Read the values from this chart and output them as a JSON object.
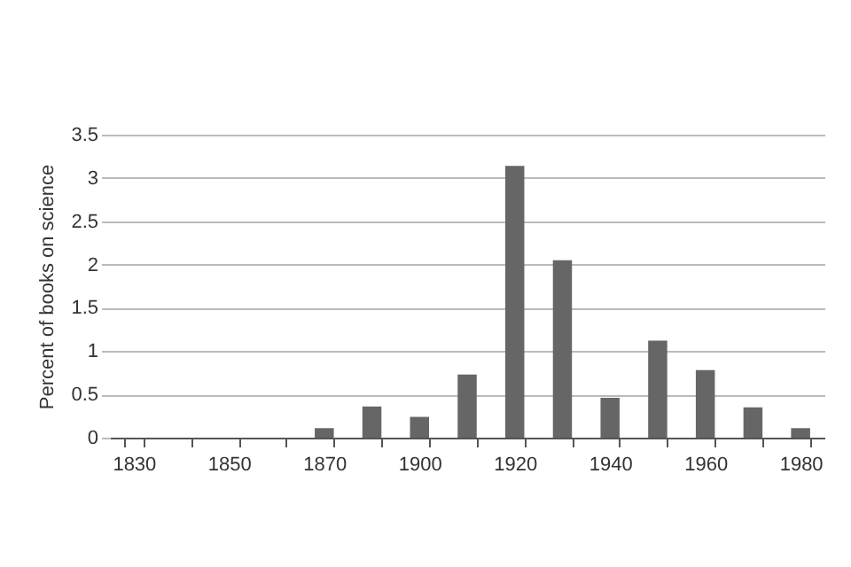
{
  "chart_data": {
    "type": "bar",
    "ylabel": "Percent of books on science",
    "categories": [
      "1830",
      null,
      "1850",
      null,
      "1870",
      null,
      "1900",
      null,
      "1920",
      null,
      "1940",
      null,
      "1960",
      null,
      "1980"
    ],
    "values": [
      0,
      0,
      0,
      0,
      0.11,
      0.36,
      0.24,
      0.73,
      3.14,
      2.05,
      0.46,
      1.12,
      0.78,
      0.35,
      0.11
    ],
    "color": "#666666",
    "ylim": [
      0,
      3.5
    ],
    "yticks": [
      0,
      0.5,
      1,
      1.5,
      2,
      2.5,
      3,
      3.5
    ],
    "grid": "y"
  }
}
